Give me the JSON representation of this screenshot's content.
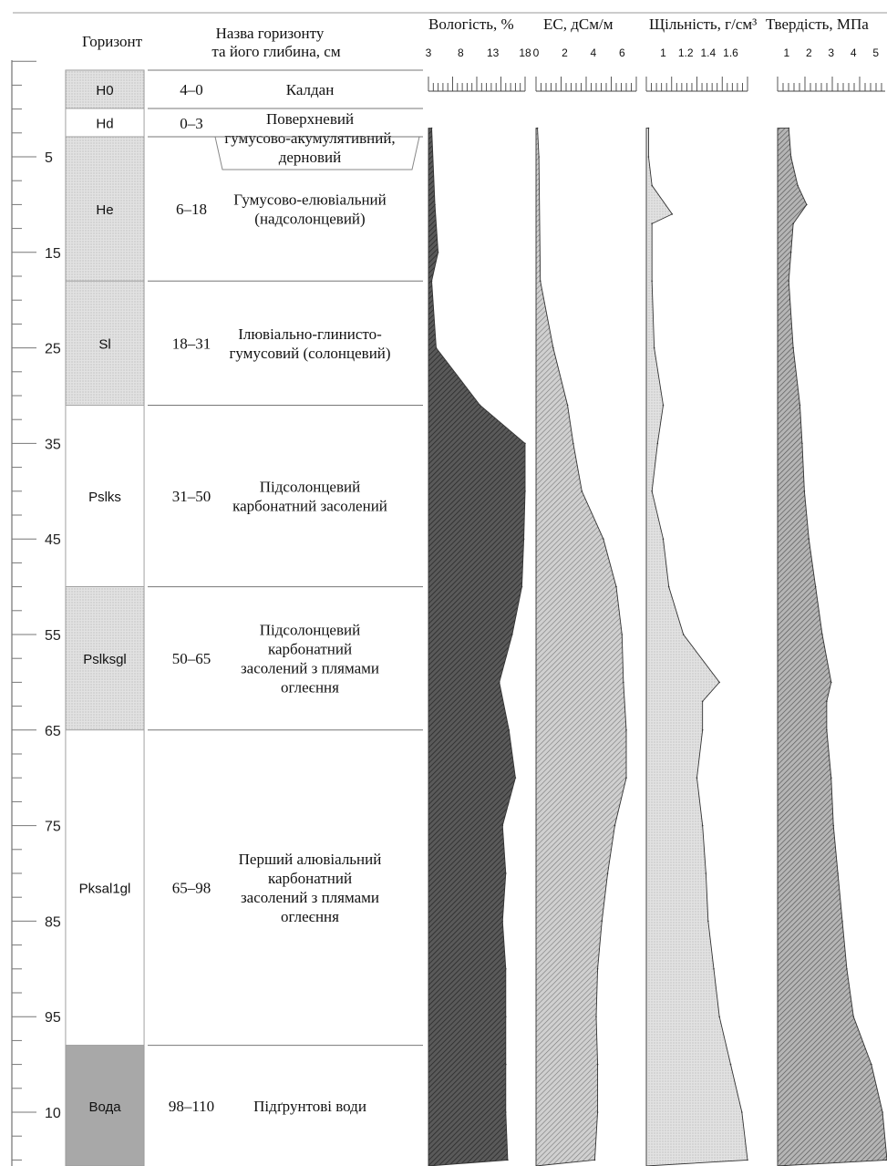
{
  "headers": {
    "horizon": "Горизонт",
    "name_line1": "Назва горизонту",
    "name_line2": "та його глибина, см"
  },
  "depth_ticks": [
    "5",
    "15",
    "25",
    "35",
    "45",
    "55",
    "65",
    "75",
    "85",
    "95",
    "10"
  ],
  "horizons": [
    {
      "code": "H0",
      "range": "4–0",
      "name": [
        "Калдан"
      ],
      "top": 0,
      "bottom": 2.2,
      "shade": "#d6d6d6"
    },
    {
      "code": "Hd",
      "range": "0–3",
      "name": [
        "Поверхневий",
        "гумусово-акумулятивний,",
        "дерновий"
      ],
      "top": 2.2,
      "bottom": 5,
      "shade": "none"
    },
    {
      "code": "He",
      "range": "6–18",
      "name": [
        "Гумусово-елювіальний",
        "(надсолонцевий)"
      ],
      "top": 5,
      "bottom": 18,
      "shade": "#d9d9d9"
    },
    {
      "code": "Sl",
      "range": "18–31",
      "name": [
        "Ілювіально-глинисто-",
        "гумусовий (солонцевий)"
      ],
      "top": 18,
      "bottom": 31,
      "shade": "#dedede"
    },
    {
      "code": "Pslks",
      "range": "31–50",
      "name": [
        "Підсолонцевий",
        "карбонатний засолений"
      ],
      "top": 31,
      "bottom": 50,
      "shade": "none"
    },
    {
      "code": "Pslksgl",
      "range": "50–65",
      "name": [
        "Підсолонцевий",
        "карбонатний",
        "засолений з плямами",
        "оглеєння"
      ],
      "top": 50,
      "bottom": 65,
      "shade": "#dadada"
    },
    {
      "code": "Pksal1gl",
      "range": "65–98",
      "name": [
        "Перший алювіальний",
        "карбонатний",
        "засолений з плямами",
        "оглеєння"
      ],
      "top": 65,
      "bottom": 98,
      "shade": "none"
    },
    {
      "code": "Вода",
      "range": "98–110",
      "name": [
        "Підґрунтові води"
      ],
      "top": 98,
      "bottom": 110,
      "shade": "#a8a8a8"
    }
  ],
  "chart_data": [
    {
      "type": "area",
      "title": "Вологість, %",
      "ticks": [
        "3",
        "8",
        "13",
        "18"
      ],
      "xlim": [
        3,
        18
      ],
      "y": [
        2,
        10,
        15,
        18,
        25,
        31,
        35,
        40,
        45,
        50,
        55,
        60,
        65,
        70,
        75,
        80,
        85,
        90,
        95,
        100,
        105,
        110
      ],
      "x": [
        3.5,
        4,
        4.5,
        3.5,
        4.2,
        11,
        18,
        18,
        17.8,
        17.5,
        16,
        14,
        15.5,
        16.5,
        14.5,
        15,
        14.5,
        15,
        15,
        15,
        15,
        15.3
      ],
      "fill": "#404040"
    },
    {
      "type": "area",
      "title": "ЕС, дСм/м",
      "ticks": [
        "0",
        "2",
        "4",
        "6"
      ],
      "xlim": [
        0,
        7
      ],
      "y": [
        2,
        5,
        18,
        25,
        31,
        35,
        40,
        45,
        50,
        55,
        60,
        65,
        70,
        75,
        80,
        85,
        90,
        95,
        100,
        105,
        110
      ],
      "x": [
        0.1,
        0.2,
        0.3,
        1.2,
        2.2,
        2.6,
        3.2,
        4.7,
        5.6,
        6,
        6.1,
        6.3,
        6.3,
        5.5,
        5,
        4.6,
        4.3,
        4.2,
        4.3,
        4.3,
        4.1
      ],
      "fill": "#9a9a9a"
    },
    {
      "type": "area",
      "title": "Щільність, г/см³",
      "ticks": [
        "1",
        "1.2",
        "1.4",
        "1.6"
      ],
      "xlim": [
        0.85,
        1.75
      ],
      "y": [
        2,
        5,
        8,
        11,
        12,
        18,
        25,
        31,
        35,
        40,
        45,
        50,
        55,
        60,
        62,
        65,
        70,
        75,
        80,
        85,
        90,
        95,
        100,
        105,
        110
      ],
      "x": [
        0.87,
        0.87,
        0.9,
        1.08,
        0.9,
        0.9,
        0.92,
        1.0,
        0.95,
        0.9,
        1.0,
        1.05,
        1.18,
        1.5,
        1.35,
        1.35,
        1.3,
        1.35,
        1.38,
        1.4,
        1.45,
        1.5,
        1.6,
        1.7,
        1.75
      ],
      "fill": "#c0c0c0"
    },
    {
      "type": "area",
      "title": "Твердість, МПа",
      "ticks": [
        "1",
        "2",
        "3",
        "4",
        "5"
      ],
      "xlim": [
        0.6,
        5.5
      ],
      "y": [
        2,
        5,
        8,
        10,
        12,
        15,
        18,
        25,
        31,
        35,
        40,
        45,
        50,
        55,
        60,
        62,
        65,
        70,
        75,
        80,
        85,
        90,
        95,
        100,
        105,
        110
      ],
      "x": [
        1.1,
        1.2,
        1.5,
        1.9,
        1.3,
        1.2,
        1.1,
        1.3,
        1.6,
        1.7,
        1.8,
        2.0,
        2.3,
        2.6,
        3.0,
        2.8,
        2.8,
        3.0,
        3.1,
        3.3,
        3.5,
        3.7,
        4.0,
        4.8,
        5.3,
        5.5
      ],
      "fill": "#6e6e6e"
    }
  ],
  "water_label": "Вода"
}
